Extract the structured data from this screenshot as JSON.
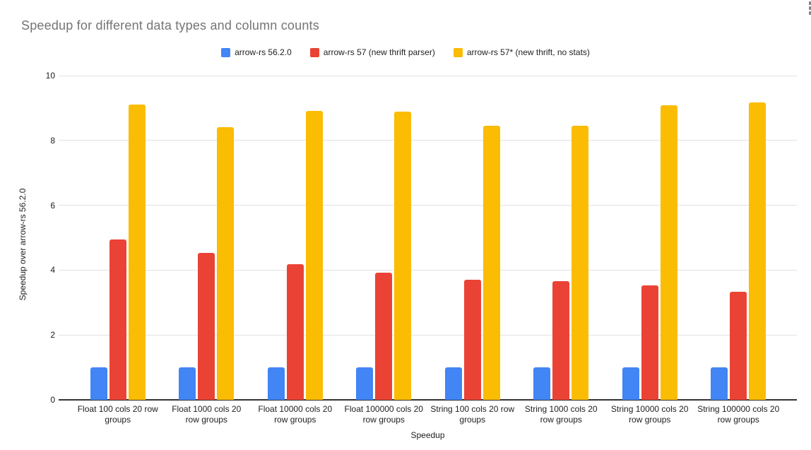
{
  "icons": {
    "menu": "kebab-menu-icon"
  },
  "colors": {
    "title_text": "#757575",
    "axis_text": "#212121",
    "gridline": "#e3e3e3",
    "axis_line": "#333333",
    "background": "#ffffff",
    "series_blue": "#4285F4",
    "series_red": "#EA4335",
    "series_yellow": "#FBBC04"
  },
  "chart_data": {
    "type": "bar",
    "title": "Speedup for different data types and column counts",
    "xlabel": "Speedup",
    "ylabel": "Speedup over arrow-rs 56.2.0",
    "ylim": [
      0,
      10
    ],
    "yticks": [
      0,
      2,
      4,
      6,
      8,
      10
    ],
    "grid": true,
    "legend_position": "top",
    "categories": [
      "Float 100 cols 20 row groups",
      "Float 1000 cols 20 row groups",
      "Float 10000 cols 20 row groups",
      "Float 100000 cols 20 row groups",
      "String 100 cols 20 row groups",
      "String 1000 cols 20 row groups",
      "String 10000 cols 20 row groups",
      "String 100000 cols 20 row groups"
    ],
    "series": [
      {
        "name": "arrow-rs 56.2.0",
        "color": "#4285F4",
        "values": [
          1.0,
          1.0,
          1.0,
          1.0,
          1.0,
          1.0,
          1.0,
          1.0
        ]
      },
      {
        "name": "arrow-rs 57 (new thrift parser)",
        "color": "#EA4335",
        "values": [
          4.95,
          4.53,
          4.18,
          3.92,
          3.7,
          3.65,
          3.52,
          3.34
        ]
      },
      {
        "name": "arrow-rs 57* (new thrift, no stats)",
        "color": "#FBBC04",
        "values": [
          9.1,
          8.42,
          8.92,
          8.88,
          8.46,
          8.46,
          9.08,
          9.18
        ]
      }
    ]
  }
}
